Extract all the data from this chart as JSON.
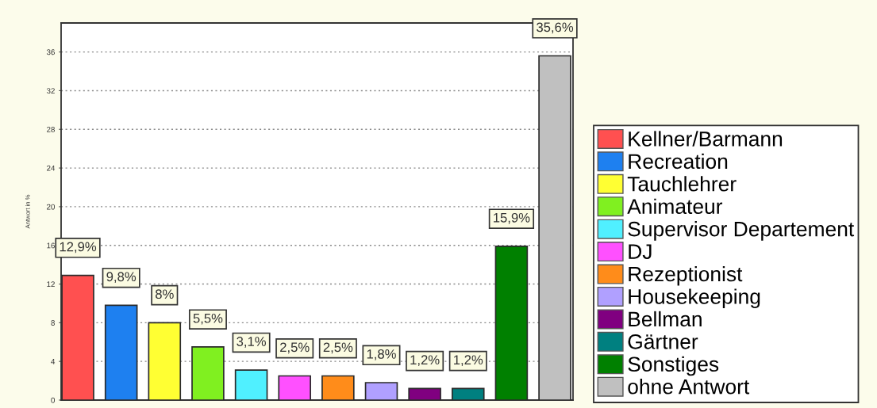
{
  "chart_data": {
    "type": "bar",
    "ylabel": "Antwort in %",
    "categories": [
      null
    ],
    "series": [
      {
        "name": "Kellner/Barmann",
        "color": "#ff5050",
        "values": [
          12.9
        ],
        "value_labels": [
          "12,9%"
        ]
      },
      {
        "name": "Recreation",
        "color": "#1e80f0",
        "values": [
          9.8
        ],
        "value_labels": [
          "9,8%"
        ]
      },
      {
        "name": "Tauchlehrer",
        "color": "#ffff33",
        "values": [
          8
        ],
        "value_labels": [
          "8%"
        ]
      },
      {
        "name": "Animateur",
        "color": "#80f020",
        "values": [
          5.5
        ],
        "value_labels": [
          "5,5%"
        ]
      },
      {
        "name": "Supervisor Departement",
        "color": "#50f0ff",
        "values": [
          3.1
        ],
        "value_labels": [
          "3,1%"
        ]
      },
      {
        "name": "DJ",
        "color": "#ff50ff",
        "values": [
          2.5
        ],
        "value_labels": [
          "2,5%"
        ]
      },
      {
        "name": "Rezeptionist",
        "color": "#ff8c1a",
        "values": [
          2.5
        ],
        "value_labels": [
          "2,5%"
        ]
      },
      {
        "name": "Housekeeping",
        "color": "#b0a0ff",
        "values": [
          1.8
        ],
        "value_labels": [
          "1,8%"
        ]
      },
      {
        "name": "Bellman",
        "color": "#800080",
        "values": [
          1.2
        ],
        "value_labels": [
          "1,2%"
        ]
      },
      {
        "name": "Gärtner",
        "color": "#008080",
        "values": [
          1.2
        ],
        "value_labels": [
          "1,2%"
        ]
      },
      {
        "name": "Sonstiges",
        "color": "#008000",
        "values": [
          15.9
        ],
        "value_labels": [
          "15,9%"
        ]
      },
      {
        "name": "ohne Antwort",
        "color": "#c0c0c0",
        "values": [
          35.6
        ],
        "value_labels": [
          "35,6%"
        ]
      }
    ],
    "ylim": [
      0,
      39
    ],
    "yticks": [
      0,
      4,
      8,
      12,
      16,
      20,
      24,
      28,
      32,
      36
    ],
    "grid": "y",
    "legend": "right",
    "tick_labels": "y"
  }
}
